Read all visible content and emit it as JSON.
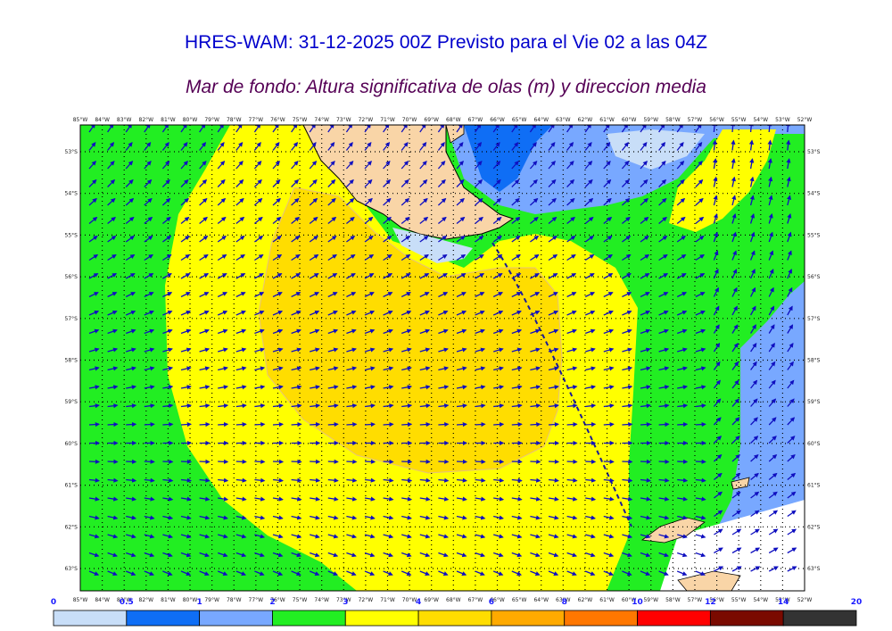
{
  "header": {
    "title": "HRES-WAM: 31-12-2025 00Z Previsto para el Vie 02 a las 04Z",
    "subtitle": "Mar de fondo: Altura significativa de olas (m) y direccion media"
  },
  "map": {
    "lon_labels": [
      "85°W",
      "84°W",
      "83°W",
      "82°W",
      "81°W",
      "80°W",
      "79°W",
      "78°W",
      "77°W",
      "76°W",
      "75°W",
      "74°W",
      "73°W",
      "72°W",
      "71°W",
      "70°W",
      "69°W",
      "68°W",
      "67°W",
      "66°W",
      "65°W",
      "64°W",
      "63°W",
      "62°W",
      "61°W",
      "60°W",
      "59°W",
      "58°W",
      "57°W",
      "56°W",
      "55°W",
      "54°W",
      "53°W",
      "52°W"
    ],
    "lat_labels": [
      "53°S",
      "54°S",
      "55°S",
      "56°S",
      "57°S",
      "58°S",
      "59°S",
      "60°S",
      "61°S",
      "62°S",
      "63°S"
    ],
    "colors": {
      "land": "#f9d5a7",
      "swell_dir_arrow": "#1010c0",
      "track": "#1a1a99"
    }
  },
  "colorbar": {
    "ticks": [
      "0",
      "0.5",
      "1",
      "2",
      "3",
      "4",
      "6",
      "8",
      "10",
      "12",
      "14",
      "20"
    ],
    "colors": [
      "#c8def8",
      "#0f6ef5",
      "#78a8ff",
      "#22ee22",
      "#ffff00",
      "#ffdd00",
      "#ffaa00",
      "#ff7700",
      "#ff0000",
      "#7a0a00",
      "#333333"
    ]
  }
}
